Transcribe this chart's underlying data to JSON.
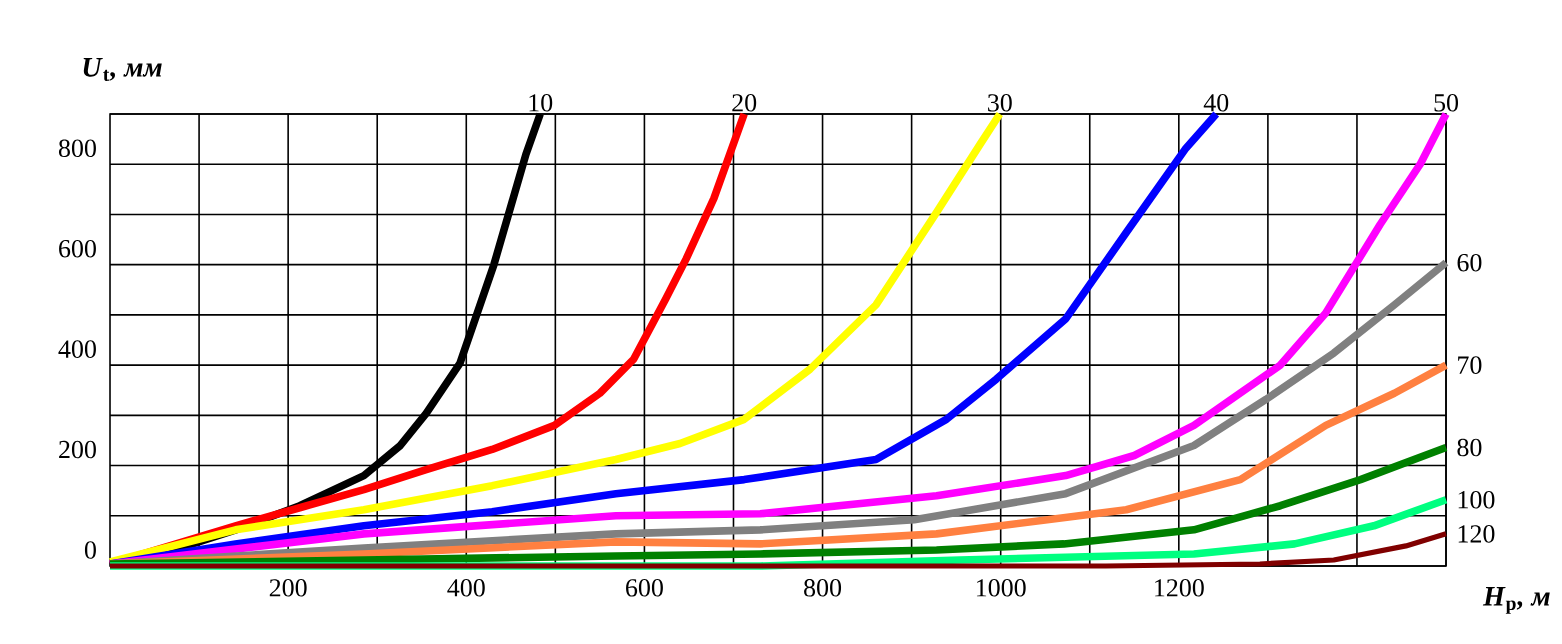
{
  "chart_data": {
    "type": "line",
    "xlabel": "*H*$_{p}$*, м*",
    "ylabel": "*U*$_{t}$*, мм*",
    "xlim": [
      0,
      1500
    ],
    "ylim": [
      0,
      900
    ],
    "grid": true,
    "line_style": "solid",
    "xticks": [
      {
        "value": 100,
        "label": null
      },
      200,
      {
        "value": 300,
        "label": null
      },
      400,
      {
        "value": 500,
        "label": null
      },
      600,
      {
        "value": 700,
        "label": null
      },
      800,
      {
        "value": 900,
        "label": null
      },
      1000,
      {
        "value": 1100,
        "label": null
      },
      1200,
      {
        "value": 1300,
        "label": null
      },
      {
        "value": 1400,
        "label": null
      },
      {
        "value": 1500,
        "label": null
      }
    ],
    "yticks": [
      0,
      {
        "value": 100,
        "label": null
      },
      200,
      {
        "value": 300,
        "label": null
      },
      400,
      {
        "value": 500,
        "label": null
      },
      600,
      {
        "value": 700,
        "label": null
      },
      800,
      {
        "value": 900,
        "label": null
      }
    ],
    "series": [
      {
        "name": "10",
        "color": "#000000",
        "x": [
          0,
          72,
          141,
          213,
          285,
          326,
          355,
          393,
          431,
          467,
          483
        ],
        "values": [
          4,
          32,
          72,
          120,
          180,
          240,
          304,
          404,
          600,
          820,
          900
        ]
      },
      {
        "name": "20",
        "color": "#ff0000",
        "x": [
          0,
          141,
          213,
          285,
          355,
          429,
          499,
          550,
          588,
          624,
          647,
          678,
          712
        ],
        "values": [
          4,
          80,
          116,
          152,
          192,
          232,
          280,
          344,
          412,
          532,
          612,
          732,
          900
        ]
      },
      {
        "name": "30",
        "color": "#ffff00",
        "x": [
          0,
          141,
          285,
          429,
          568,
          640,
          712,
          786,
          860,
          928,
          977,
          999
        ],
        "values": [
          8,
          72,
          112,
          160,
          212,
          244,
          292,
          392,
          520,
          704,
          840,
          900
        ]
      },
      {
        "name": "40",
        "color": "#0000ff",
        "x": [
          0,
          141,
          285,
          429,
          568,
          712,
          860,
          939,
          995,
          1073,
          1141,
          1208,
          1242
        ],
        "values": [
          4,
          44,
          80,
          108,
          144,
          172,
          212,
          292,
          372,
          492,
          664,
          832,
          900
        ]
      },
      {
        "name": "50",
        "color": "#ff00ff",
        "x": [
          0,
          285,
          568,
          730,
          928,
          1073,
          1150,
          1217,
          1314,
          1365,
          1426,
          1471,
          1500
        ],
        "values": [
          4,
          64,
          100,
          104,
          140,
          180,
          220,
          280,
          400,
          504,
          680,
          800,
          900
        ]
      },
      {
        "name": "60",
        "color": "#808080",
        "x": [
          0,
          285,
          568,
          730,
          903,
          1073,
          1217,
          1298,
          1374,
          1442,
          1500
        ],
        "values": [
          4,
          36,
          64,
          72,
          92,
          144,
          240,
          332,
          424,
          520,
          604
        ]
      },
      {
        "name": "70",
        "color": "#ff8040",
        "x": [
          0,
          285,
          568,
          730,
          928,
          1141,
          1269,
          1365,
          1442,
          1500
        ],
        "values": [
          4,
          24,
          48,
          44,
          64,
          112,
          172,
          280,
          344,
          400
        ]
      },
      {
        "name": "80",
        "color": "#008000",
        "x": [
          0,
          285,
          568,
          730,
          928,
          1071,
          1217,
          1314,
          1404,
          1500
        ],
        "values": [
          4,
          12,
          20,
          24,
          32,
          44,
          72,
          120,
          172,
          236
        ]
      },
      {
        "name": "100",
        "color": "#00ff80",
        "x": [
          0,
          730,
          954,
          1217,
          1330,
          1419,
          1500
        ],
        "values": [
          0,
          0,
          12,
          24,
          44,
          80,
          132
        ]
      },
      {
        "name": "120",
        "color": "#800000",
        "x": [
          0,
          730,
          1118,
          1291,
          1374,
          1455,
          1500
        ],
        "values": [
          0,
          0,
          0,
          4,
          12,
          40,
          64
        ]
      }
    ]
  }
}
